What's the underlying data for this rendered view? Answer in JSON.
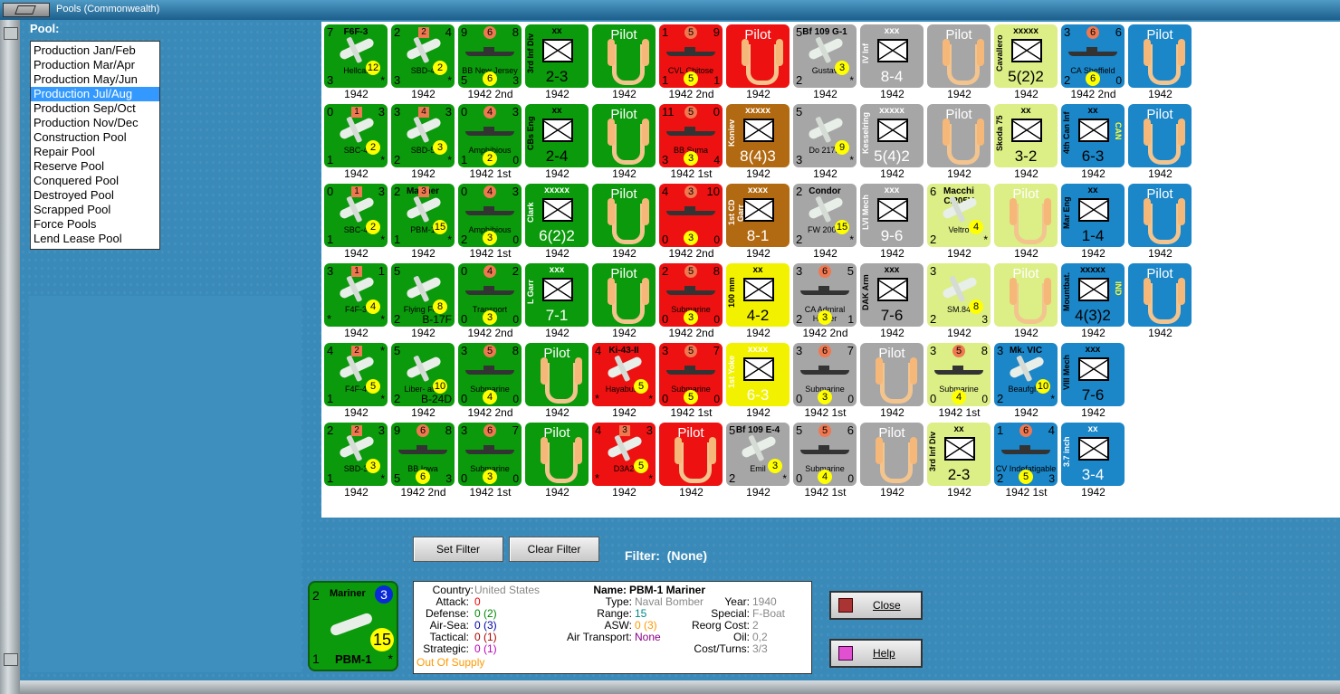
{
  "window": {
    "title": "Pools (Commonwealth)"
  },
  "pool": {
    "header": "Pool:",
    "items": [
      "Production Jan/Feb",
      "Production Mar/Apr",
      "Production May/Jun",
      "Production Jul/Aug",
      "Production Sep/Oct",
      "Production Nov/Dec",
      "Construction Pool",
      "Repair Pool",
      "Reserve Pool",
      "Conquered Pool",
      "Destroyed Pool",
      "Scrapped Pool",
      "Force Pools",
      "Lend Lease Pool"
    ],
    "selected": "Production Jul/Aug"
  },
  "rows": [
    [
      {
        "kind": "air",
        "color": "green",
        "tl": "7",
        "tp": "F6F-3",
        "nm": "Hellcat",
        "bl": "3",
        "dot": "12",
        "br": "*",
        "year": "1942"
      },
      {
        "kind": "air",
        "color": "green",
        "tl": "2",
        "tr": "4",
        "sq": "2",
        "nm": "SBD-4",
        "bl": "3",
        "dot": "2",
        "br": "*",
        "year": "1942"
      },
      {
        "kind": "ship",
        "color": "green",
        "tl": "9",
        "odot": "6",
        "tr": "8",
        "nm": "BB New Jersey",
        "bl": "5",
        "dot": "6",
        "br": "3",
        "year": "1942 2nd"
      },
      {
        "kind": "unit",
        "color": "green",
        "lbl": "xx",
        "vname": "3rd Inf Div",
        "str": "2-3",
        "year": "1942"
      },
      {
        "kind": "pilot",
        "color": "green",
        "pilot": "Pilot",
        "year": "1942"
      },
      {
        "kind": "ship",
        "color": "red",
        "tl": "1",
        "odot": "5",
        "tr": "9",
        "nm": "CVL Chitose",
        "bl": "1",
        "dot": "5",
        "br": "1",
        "year": "1942 2nd"
      },
      {
        "kind": "pilot",
        "color": "red",
        "pilot": "Pilot",
        "year": "1942"
      },
      {
        "kind": "air",
        "color": "grey",
        "tl": "5",
        "tp": "Bf 109 G-1",
        "nm": "Gustav",
        "bl": "2",
        "dot": "3",
        "br": "*",
        "year": "1942"
      },
      {
        "kind": "unit",
        "color": "grey",
        "lbl": "xxx",
        "vname": "IV Inf",
        "str": "8-4",
        "light": true,
        "year": "1942"
      },
      {
        "kind": "pilot",
        "color": "grey",
        "pilot": "Pilot",
        "year": "1942"
      },
      {
        "kind": "unit",
        "color": "lgreen",
        "lbl": "xxxxx",
        "vname": "Cavallero",
        "str": "5(2)2",
        "year": "1942"
      },
      {
        "kind": "ship",
        "color": "blue",
        "tl": "3",
        "odot": "6",
        "tr": "6",
        "nm": "CA Sheffield",
        "bl": "2",
        "dot": "6",
        "br": "0",
        "year": "1942 2nd"
      },
      {
        "kind": "pilot",
        "color": "blue",
        "pilot": "Pilot",
        "year": "1942"
      }
    ],
    [
      {
        "kind": "air",
        "color": "green",
        "tl": "0",
        "tr": "3",
        "sq": "1",
        "nm": "SBC-4",
        "bl": "1",
        "dot": "2",
        "br": "*",
        "year": "1942"
      },
      {
        "kind": "air",
        "color": "green",
        "tl": "3",
        "tr": "3",
        "sq": "4",
        "nm": "SBD-5",
        "bl": "2",
        "dot": "3",
        "br": "*",
        "year": "1942"
      },
      {
        "kind": "ship",
        "color": "green",
        "tl": "0",
        "odot": "4",
        "tr": "3",
        "nm": "Amphibious",
        "bl": "1",
        "dot": "2",
        "br": "0",
        "year": "1942 1st"
      },
      {
        "kind": "unit",
        "color": "green",
        "lbl": "xx",
        "vname": "CBs Eng",
        "str": "2-4",
        "year": "1942"
      },
      {
        "kind": "pilot",
        "color": "green",
        "pilot": "Pilot",
        "year": "1942"
      },
      {
        "kind": "ship",
        "color": "red",
        "tl": "11",
        "odot": "5",
        "tr": "0",
        "nm": "BB Suma",
        "bl": "3",
        "dot": "3",
        "br": "4",
        "year": "1942 1st"
      },
      {
        "kind": "unit",
        "color": "brown",
        "lbl": "xxxxx",
        "vname": "Koniev",
        "str": "8(4)3",
        "light": true,
        "year": "1942"
      },
      {
        "kind": "air",
        "color": "grey",
        "tl": "5",
        "nm": "Do 217K",
        "bl": "3",
        "dot": "9",
        "br": "*",
        "year": "1942"
      },
      {
        "kind": "unit",
        "color": "grey",
        "lbl": "xxxxx",
        "vname": "Kesselring",
        "str": "5(4)2",
        "light": true,
        "year": "1942"
      },
      {
        "kind": "pilot",
        "color": "grey",
        "pilot": "Pilot",
        "year": "1942"
      },
      {
        "kind": "unit",
        "color": "lgreen",
        "lbl": "xx",
        "vname": "Skoda 75",
        "str": "3-2",
        "year": "1942"
      },
      {
        "kind": "unit",
        "color": "blue",
        "lbl": "xx",
        "vname": "4th Can Inf",
        "str": "6-3",
        "tag": "CAN",
        "year": "1942"
      },
      {
        "kind": "pilot",
        "color": "blue",
        "pilot": "Pilot",
        "year": "1942"
      }
    ],
    [
      {
        "kind": "air",
        "color": "green",
        "tl": "0",
        "tr": "3",
        "sq": "1",
        "nm": "SBC-4",
        "bl": "1",
        "dot": "2",
        "br": "*",
        "year": "1942"
      },
      {
        "kind": "air",
        "color": "green",
        "tl": "2",
        "tp": "Mariner",
        "sq": "3",
        "nm": "PBM-1",
        "bl": "1",
        "dot": "15",
        "br": "*",
        "year": "1942"
      },
      {
        "kind": "ship",
        "color": "green",
        "tl": "0",
        "odot": "4",
        "tr": "3",
        "nm": "Amphibious",
        "bl": "2",
        "dot": "3",
        "br": "0",
        "year": "1942 1st"
      },
      {
        "kind": "unit",
        "color": "green",
        "lbl": "xxxxx",
        "vname": "Clark",
        "str": "6(2)2",
        "light": true,
        "year": "1942"
      },
      {
        "kind": "pilot",
        "color": "green",
        "pilot": "Pilot",
        "year": "1942"
      },
      {
        "kind": "ship",
        "color": "red",
        "tl": "4",
        "odot": "3",
        "tr": "10",
        "nm": "",
        "bl": "0",
        "dot": "3",
        "br": "0",
        "year": "1942 2nd"
      },
      {
        "kind": "unit",
        "color": "brown",
        "lbl": "xxxx",
        "vname": "1st CD Garr",
        "str": "8-1",
        "light": true,
        "year": "1942"
      },
      {
        "kind": "air",
        "color": "grey",
        "tl": "2",
        "tp": "Condor",
        "nm": "FW 200C",
        "bl": "2",
        "dot": "15",
        "br": "*",
        "year": "1942"
      },
      {
        "kind": "unit",
        "color": "grey",
        "lbl": "xxx",
        "vname": "LVI Mech",
        "str": "9-6",
        "light": true,
        "year": "1942"
      },
      {
        "kind": "air",
        "color": "lgreen",
        "tl": "6",
        "tp": "Macchi C.205V",
        "nm": "Veltro",
        "bl": "2",
        "dot": "4",
        "br": "*",
        "year": "1942"
      },
      {
        "kind": "pilot",
        "color": "lgreen",
        "pilot": "Pilot",
        "year": "1942"
      },
      {
        "kind": "unit",
        "color": "blue",
        "lbl": "xx",
        "vname": "Mar Eng",
        "str": "1-4",
        "year": "1942"
      },
      {
        "kind": "pilot",
        "color": "blue",
        "pilot": "Pilot",
        "year": "1942"
      }
    ],
    [
      {
        "kind": "air",
        "color": "green",
        "tl": "3",
        "tr": "1",
        "sq": "1",
        "nm": "F4F-3",
        "bl": "*",
        "dot": "4",
        "br": "*",
        "year": "1942"
      },
      {
        "kind": "air",
        "color": "green",
        "tl": "5",
        "tp": "",
        "nm": "Flying Fort",
        "bl": "2",
        "dot": "8",
        "br": "B-17F",
        "year": "1942"
      },
      {
        "kind": "ship",
        "color": "green",
        "tl": "0",
        "odot": "4",
        "tr": "2",
        "nm": "Transport",
        "bl": "0",
        "dot": "3",
        "br": "0",
        "year": "1942 2nd"
      },
      {
        "kind": "unit",
        "color": "green",
        "lbl": "xxx",
        "vname": "L Garr",
        "str": "7-1",
        "light": true,
        "year": "1942"
      },
      {
        "kind": "pilot",
        "color": "green",
        "pilot": "Pilot",
        "year": "1942"
      },
      {
        "kind": "ship",
        "color": "red",
        "tl": "2",
        "odot": "5",
        "tr": "8",
        "nm": "Submarine",
        "bl": "0",
        "dot": "3",
        "br": "0",
        "year": "1942 2nd"
      },
      {
        "kind": "unit",
        "color": "yellow",
        "lbl": "xx",
        "vname": "100 mm",
        "str": "4-2",
        "year": "1942"
      },
      {
        "kind": "ship",
        "color": "grey",
        "tl": "3",
        "odot": "6",
        "tr": "5",
        "nm": "CA Admiral Hipper",
        "bl": "2",
        "dot": "3",
        "br": "1",
        "year": "1942 2nd"
      },
      {
        "kind": "unit",
        "color": "grey",
        "lbl": "xxx",
        "vname": "DAK Arm",
        "str": "7-6",
        "year": "1942"
      },
      {
        "kind": "air",
        "color": "lgreen",
        "tl": "3",
        "nm": "SM.84",
        "bl": "2",
        "dot": "8",
        "br": "3",
        "year": "1942"
      },
      {
        "kind": "pilot",
        "color": "lgreen",
        "pilot": "Pilot",
        "year": "1942"
      },
      {
        "kind": "unit",
        "color": "blue",
        "lbl": "xxxxx",
        "vname": "Mountbat.",
        "str": "4(3)2",
        "tag": "IND",
        "year": "1942"
      },
      {
        "kind": "pilot",
        "color": "blue",
        "pilot": "Pilot",
        "year": "1942"
      }
    ],
    [
      {
        "kind": "air",
        "color": "green",
        "tl": "4",
        "tr": "*",
        "sq": "2",
        "nm": "F4F-4",
        "bl": "1",
        "dot": "5",
        "br": "*",
        "year": "1942"
      },
      {
        "kind": "air",
        "color": "green",
        "tl": "5",
        "nm": "Liber- ator",
        "bl": "2",
        "dot": "10",
        "br": "B-24D",
        "year": "1942"
      },
      {
        "kind": "ship",
        "color": "green",
        "tl": "3",
        "odot": "5",
        "tr": "8",
        "nm": "Submarine",
        "bl": "0",
        "dot": "4",
        "br": "0",
        "year": "1942 2nd"
      },
      {
        "kind": "pilot",
        "color": "green",
        "pilot": "Pilot",
        "year": "1942"
      },
      {
        "kind": "air",
        "color": "red",
        "tl": "4",
        "tp": "Ki-43-II",
        "nm": "Hayabusa",
        "bl": "*",
        "dot": "5",
        "br": "*",
        "year": "1942"
      },
      {
        "kind": "ship",
        "color": "red",
        "tl": "3",
        "odot": "5",
        "tr": "7",
        "nm": "Submarine",
        "bl": "0",
        "dot": "5",
        "br": "0",
        "year": "1942 1st"
      },
      {
        "kind": "unit",
        "color": "yellow",
        "lbl": "xxxx",
        "vname": "1st Yoke",
        "str": "6-3",
        "light": true,
        "year": "1942"
      },
      {
        "kind": "ship",
        "color": "grey",
        "tl": "3",
        "odot": "6",
        "tr": "7",
        "nm": "Submarine",
        "bl": "0",
        "dot": "3",
        "br": "0",
        "year": "1942 1st"
      },
      {
        "kind": "pilot",
        "color": "grey",
        "pilot": "Pilot",
        "year": "1942"
      },
      {
        "kind": "ship",
        "color": "lgreen",
        "tl": "3",
        "odot": "5",
        "tr": "8",
        "nm": "Submarine",
        "bl": "0",
        "dot": "4",
        "br": "0",
        "year": "1942 1st"
      },
      {
        "kind": "air",
        "color": "blue",
        "tl": "3",
        "tp": "Mk. VIC",
        "nm": "Beaufghtr",
        "bl": "2",
        "dot": "10",
        "br": "*",
        "year": "1942"
      },
      {
        "kind": "unit",
        "color": "blue",
        "lbl": "xxx",
        "vname": "VIII Mech",
        "str": "7-6",
        "year": "1942"
      }
    ],
    [
      {
        "kind": "air",
        "color": "green",
        "tl": "2",
        "tr": "3",
        "sq": "2",
        "nm": "SBD-3",
        "bl": "1",
        "dot": "3",
        "br": "*",
        "year": "1942"
      },
      {
        "kind": "ship",
        "color": "green",
        "tl": "9",
        "odot": "6",
        "tr": "8",
        "nm": "BB Iowa",
        "bl": "5",
        "dot": "6",
        "br": "3",
        "year": "1942 2nd"
      },
      {
        "kind": "ship",
        "color": "green",
        "tl": "3",
        "odot": "6",
        "tr": "7",
        "nm": "Submarine",
        "bl": "0",
        "dot": "3",
        "br": "0",
        "year": "1942 1st"
      },
      {
        "kind": "pilot",
        "color": "green",
        "pilot": "Pilot",
        "year": "1942"
      },
      {
        "kind": "air",
        "color": "red",
        "tl": "4",
        "sq": "3",
        "tr": "3",
        "nm": "D3A2",
        "bl": "*",
        "dot": "5",
        "br": "*",
        "year": "1942"
      },
      {
        "kind": "pilot",
        "color": "red",
        "pilot": "Pilot",
        "year": "1942"
      },
      {
        "kind": "air",
        "color": "grey",
        "tl": "5",
        "tp": "Bf 109 E-4",
        "nm": "Emil",
        "bl": "2",
        "dot": "3",
        "br": "*",
        "year": "1942"
      },
      {
        "kind": "ship",
        "color": "grey",
        "tl": "5",
        "odot": "5",
        "tr": "6",
        "nm": "Submarine",
        "bl": "0",
        "dot": "4",
        "br": "0",
        "year": "1942 1st"
      },
      {
        "kind": "pilot",
        "color": "grey",
        "pilot": "Pilot",
        "year": "1942"
      },
      {
        "kind": "unit",
        "color": "lgreen",
        "lbl": "xx",
        "vname": "3rd Inf Div",
        "str": "2-3",
        "year": "1942"
      },
      {
        "kind": "ship",
        "color": "blue",
        "tl": "1",
        "odot": "6",
        "tr": "4",
        "nm": "CV Indefatigable",
        "bl": "2",
        "dot": "5",
        "br": "3",
        "year": "1942 1st"
      },
      {
        "kind": "unit",
        "color": "blue",
        "lbl": "xx",
        "vname": "3.7 inch",
        "str": "3-4",
        "light": true,
        "year": "1942"
      }
    ]
  ],
  "filter": {
    "set_label": "Set Filter",
    "clear_label": "Clear Filter",
    "label": "Filter:",
    "value": "(None)"
  },
  "selected_counter": {
    "tl": "2",
    "tp": "Mariner",
    "sq": "3",
    "dot": "15",
    "bl": "1",
    "nm": "PBM-1",
    "br": "*"
  },
  "info": {
    "country_label": "Country:",
    "country": "United States",
    "attack_label": "Attack:",
    "attack": "0",
    "defense_label": "Defense:",
    "defense": "0 (2)",
    "airsea_label": "Air-Sea:",
    "airsea": "0 (3)",
    "tactical_label": "Tactical:",
    "tactical": "0 (1)",
    "strategic_label": "Strategic:",
    "strategic": "0 (1)",
    "supply": "Out Of Supply",
    "name_label": "Name:",
    "name": "PBM-1 Mariner",
    "type_label": "Type:",
    "type": "Naval Bomber",
    "year_label": "Year:",
    "year": "1940",
    "range_label": "Range:",
    "range": "15",
    "special_label": "Special:",
    "special": "F-Boat",
    "asw_label": "ASW:",
    "asw": "0 (3)",
    "reorg_label": "Reorg Cost:",
    "reorg": "2",
    "airtrans_label": "Air Transport:",
    "airtrans": "None",
    "oil_label": "Oil:",
    "oil": "0,2",
    "cost_label": "Cost/Turns:",
    "cost": "3/3"
  },
  "buttons": {
    "close": "Close",
    "help": "Help"
  },
  "colors": {
    "green": "#0b9a0b",
    "red": "#ee1111",
    "grey": "#a6a6a6",
    "lgreen": "#dcee86",
    "blue": "#1b86c8",
    "yellow": "#f2f200",
    "brown": "#b26a12"
  }
}
